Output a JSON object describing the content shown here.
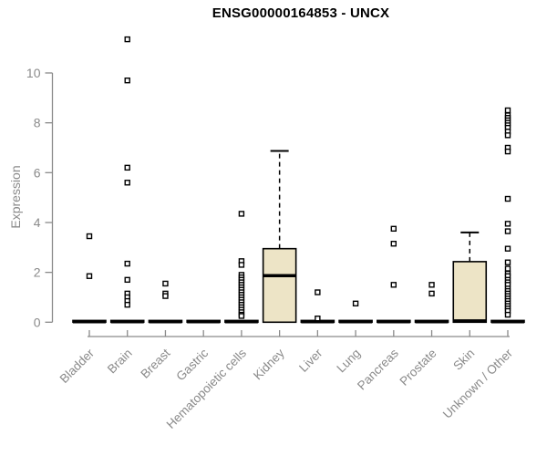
{
  "chart_data": {
    "type": "boxplot",
    "title": "ENSG00000164853 - UNCX",
    "ylabel": "Expression",
    "xlabel": "",
    "ylim": [
      0,
      11.5
    ],
    "yticks": [
      0,
      2,
      4,
      6,
      8,
      10
    ],
    "grid": false,
    "legend": "none",
    "axis_color": "#8a8a8a",
    "box_fill_color": "#EDE4C6",
    "box_line_color": "#000000",
    "categories": [
      "Bladder",
      "Brain",
      "Breast",
      "Gastric",
      "Hematopoietic cells",
      "Kidney",
      "Liver",
      "Lung",
      "Pancreas",
      "Prostate",
      "Skin",
      "Unknown / Other"
    ],
    "boxes": [
      {
        "category": "Bladder",
        "q1": 0,
        "median": 0.02,
        "q3": 0.07,
        "whisker_low": 0,
        "whisker_high": 0.07,
        "outliers": [
          3.45,
          1.85
        ]
      },
      {
        "category": "Brain",
        "q1": 0,
        "median": 0.02,
        "q3": 0.07,
        "whisker_low": 0,
        "whisker_high": 0.07,
        "outliers": [
          11.35,
          9.7,
          6.2,
          5.6,
          2.35,
          1.7,
          1.15,
          1.0,
          0.85,
          0.7
        ]
      },
      {
        "category": "Breast",
        "q1": 0,
        "median": 0.02,
        "q3": 0.07,
        "whisker_low": 0,
        "whisker_high": 0.07,
        "outliers": [
          1.55,
          1.15,
          1.05
        ]
      },
      {
        "category": "Gastric",
        "q1": 0,
        "median": 0.02,
        "q3": 0.07,
        "whisker_low": 0,
        "whisker_high": 0.07,
        "outliers": []
      },
      {
        "category": "Hematopoietic cells",
        "q1": 0,
        "median": 0.02,
        "q3": 0.07,
        "whisker_low": 0,
        "whisker_high": 0.07,
        "outliers": [
          4.35,
          2.45,
          2.3,
          1.9,
          1.8,
          1.7,
          1.6,
          1.5,
          1.4,
          1.3,
          1.2,
          1.1,
          1.0,
          0.9,
          0.8,
          0.7,
          0.6,
          0.5,
          0.4,
          0.3,
          0.25
        ]
      },
      {
        "category": "Kidney",
        "q1": 0,
        "median": 1.87,
        "q3": 2.95,
        "whisker_low": 0,
        "whisker_high": 6.87,
        "outliers": []
      },
      {
        "category": "Liver",
        "q1": 0,
        "median": 0.02,
        "q3": 0.07,
        "whisker_low": 0,
        "whisker_high": 0.07,
        "outliers": [
          1.2,
          0.15
        ]
      },
      {
        "category": "Lung",
        "q1": 0,
        "median": 0.02,
        "q3": 0.07,
        "whisker_low": 0,
        "whisker_high": 0.07,
        "outliers": [
          0.75
        ]
      },
      {
        "category": "Pancreas",
        "q1": 0,
        "median": 0.02,
        "q3": 0.07,
        "whisker_low": 0,
        "whisker_high": 0.07,
        "outliers": [
          3.75,
          3.15,
          1.5
        ]
      },
      {
        "category": "Prostate",
        "q1": 0,
        "median": 0.02,
        "q3": 0.07,
        "whisker_low": 0,
        "whisker_high": 0.07,
        "outliers": [
          1.5,
          1.15
        ]
      },
      {
        "category": "Skin",
        "q1": 0,
        "median": 0.05,
        "q3": 2.43,
        "whisker_low": 0,
        "whisker_high": 3.6,
        "outliers": []
      },
      {
        "category": "Unknown / Other",
        "q1": 0,
        "median": 0.02,
        "q3": 0.07,
        "whisker_low": 0,
        "whisker_high": 0.07,
        "outliers": [
          8.5,
          8.3,
          8.2,
          8.1,
          8.0,
          7.9,
          7.8,
          7.65,
          7.5,
          7.0,
          6.85,
          4.95,
          3.95,
          3.65,
          2.95,
          2.4,
          2.15,
          1.95,
          1.85,
          1.7,
          1.6,
          1.5,
          1.35,
          1.25,
          1.15,
          1.05,
          0.95,
          0.85,
          0.75,
          0.65,
          0.55,
          0.45,
          0.3
        ]
      }
    ]
  }
}
